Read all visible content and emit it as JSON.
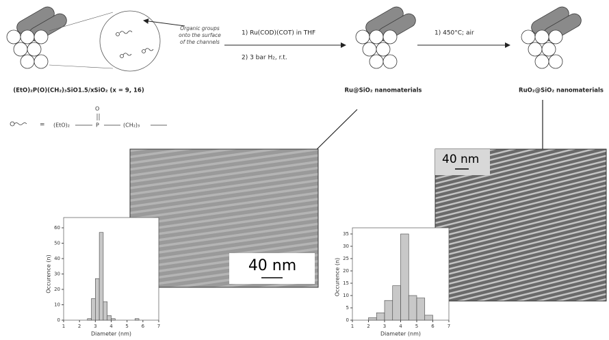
{
  "scheme": {
    "precursor_label": "(EtO)₂P(O)(CH₂)₃SiO1.5/xSiO₂ (x = 9, 16)",
    "organic_note": [
      "Organic groups",
      "onto the surface",
      "of the channels"
    ],
    "step1": [
      "1) Ru(COD)(COT) in THF",
      "2) 3 bar H₂, r.t."
    ],
    "step2": "1) 450°C; air",
    "product1": "Ru@SiO₂ nanomaterials",
    "product2": "RuO₂@SiO₂ nanomaterials",
    "legend_equals": "=",
    "legend_formula": {
      "left": "(EtO)₂",
      "p": "P",
      "o": "O",
      "right": "(CH₂)₃"
    },
    "scale_bar_1": "40 nm",
    "scale_bar_2": "40 nm"
  },
  "chart_data": [
    {
      "type": "histogram",
      "xlabel": "Diameter (nm)",
      "ylabel": "Occurence (n)",
      "bins": [
        2.5,
        2.75,
        3.0,
        3.25,
        3.5,
        3.75,
        4.0,
        4.25,
        4.5,
        4.75,
        5.0,
        5.25,
        5.5,
        5.75
      ],
      "counts": [
        1,
        14,
        27,
        57,
        12,
        3,
        1,
        0,
        0,
        0,
        0,
        0,
        1
      ],
      "color": "#c8c8c8",
      "xlim": [
        1,
        7
      ],
      "xticks": [
        1,
        2,
        3,
        4,
        5,
        6,
        7
      ],
      "ylim": [
        0,
        60
      ],
      "yticks": [
        0,
        10,
        20,
        30,
        40,
        50,
        60
      ]
    },
    {
      "type": "histogram",
      "xlabel": "Diameter (nm)",
      "ylabel": "Occurence (n)",
      "bins": [
        2.0,
        2.5,
        3.0,
        3.5,
        4.0,
        4.5,
        5.0,
        5.5,
        6.0
      ],
      "counts": [
        1,
        3,
        8,
        14,
        35,
        10,
        9,
        2
      ],
      "color": "#c8c8c8",
      "xlim": [
        1,
        7
      ],
      "xticks": [
        1,
        2,
        3,
        4,
        5,
        6,
        7
      ],
      "ylim": [
        0,
        35
      ],
      "yticks": [
        0,
        5,
        10,
        15,
        20,
        25,
        30,
        35
      ]
    }
  ]
}
